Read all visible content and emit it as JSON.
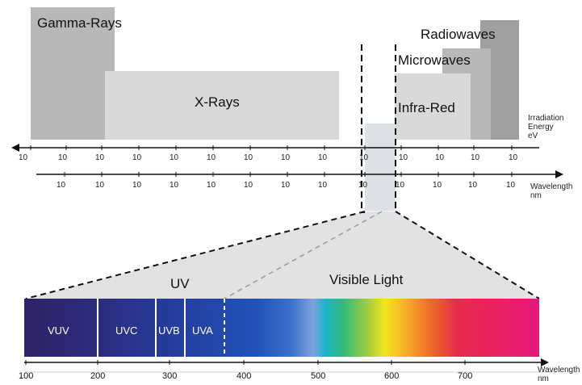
{
  "regions": {
    "gamma": "Gamma-Rays",
    "xray": "X-Rays",
    "radio": "Radiowaves",
    "micro": "Microwaves",
    "infrared": "Infra-Red"
  },
  "energy_axis": {
    "label_line1": "Irradiation",
    "label_line2": "Energy",
    "label_line3": "eV",
    "ticks": [
      "10",
      "10",
      "10",
      "10",
      "10",
      "10",
      "10",
      "10",
      "10",
      "10",
      "10",
      "10",
      "10",
      "10",
      "10"
    ]
  },
  "wavelength_axis": {
    "label_line1": "Wavelength",
    "label_line2": "nm",
    "ticks": [
      "10",
      "10",
      "10",
      "10",
      "10",
      "10",
      "10",
      "10",
      "10",
      "10",
      "10",
      "10",
      "10"
    ]
  },
  "zoom": {
    "uv_label": "UV",
    "visible_label": "Visible Light",
    "bands": [
      "VUV",
      "UVC",
      "UVB",
      "UVA"
    ]
  },
  "spectrum_axis": {
    "label_line1": "Wavelength",
    "label_line2": "nm",
    "ticks": [
      "100",
      "200",
      "300",
      "400",
      "500",
      "600",
      "700"
    ]
  },
  "colors": {
    "gamma": "#b8b8b8",
    "xray": "#d8d8d8",
    "radio_dark": "#a0a0a0",
    "radio_mid": "#b8b8b8",
    "infrared": "#d9d9d9",
    "zoom_fill": "#e2e2e2"
  }
}
